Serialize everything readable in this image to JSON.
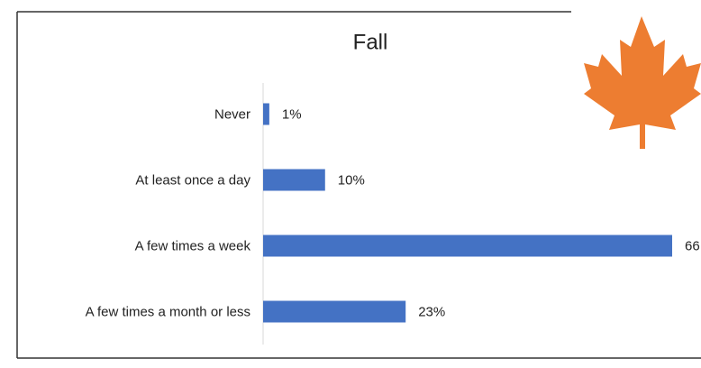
{
  "chart_data": {
    "type": "bar",
    "orientation": "horizontal",
    "title": "Fall",
    "categories": [
      "Never",
      "At least once a day",
      "A few times a week",
      "A few times a month or less"
    ],
    "values": [
      1,
      10,
      66,
      23
    ],
    "value_labels": [
      "1%",
      "10%",
      "66",
      "23%"
    ],
    "color": "#4472c4",
    "xlim": [
      0,
      70
    ]
  }
}
